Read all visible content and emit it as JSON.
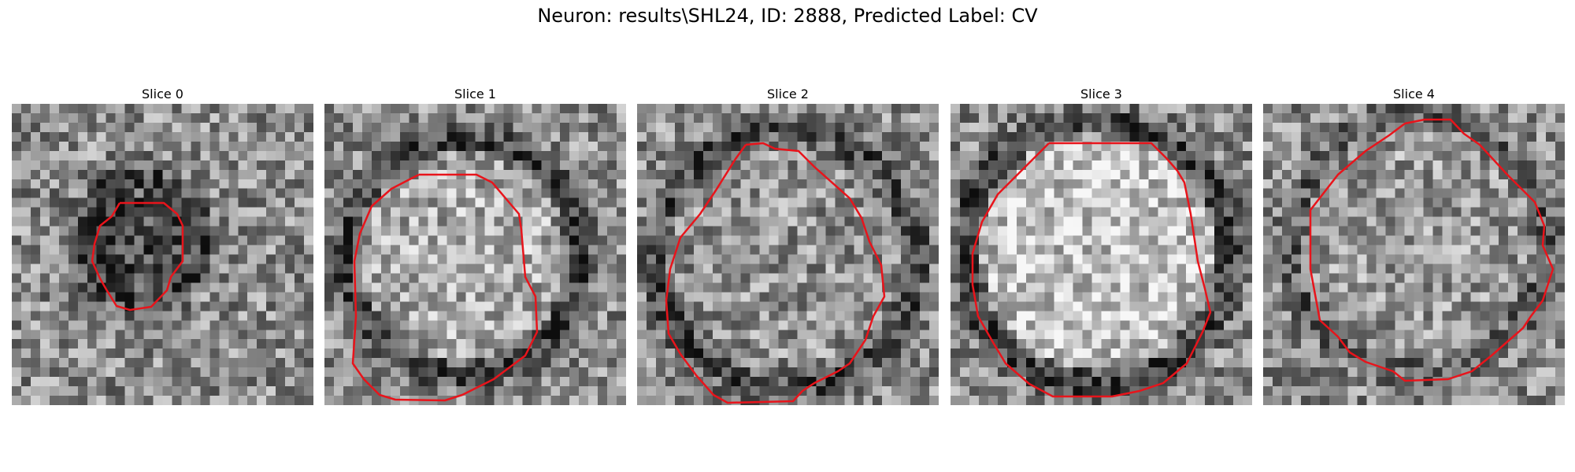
{
  "title": "Neuron: results\\SHL24, ID: 2888, Predicted Label: CV",
  "panels": [
    {
      "label": "Slice 0"
    },
    {
      "label": "Slice 1"
    },
    {
      "label": "Slice 2"
    },
    {
      "label": "Slice 3"
    },
    {
      "label": "Slice 4"
    }
  ],
  "colors": {
    "contour": "#e8141b",
    "background": "#ffffff"
  },
  "image": {
    "colormap": "grayscale",
    "grid_cells": 32
  }
}
